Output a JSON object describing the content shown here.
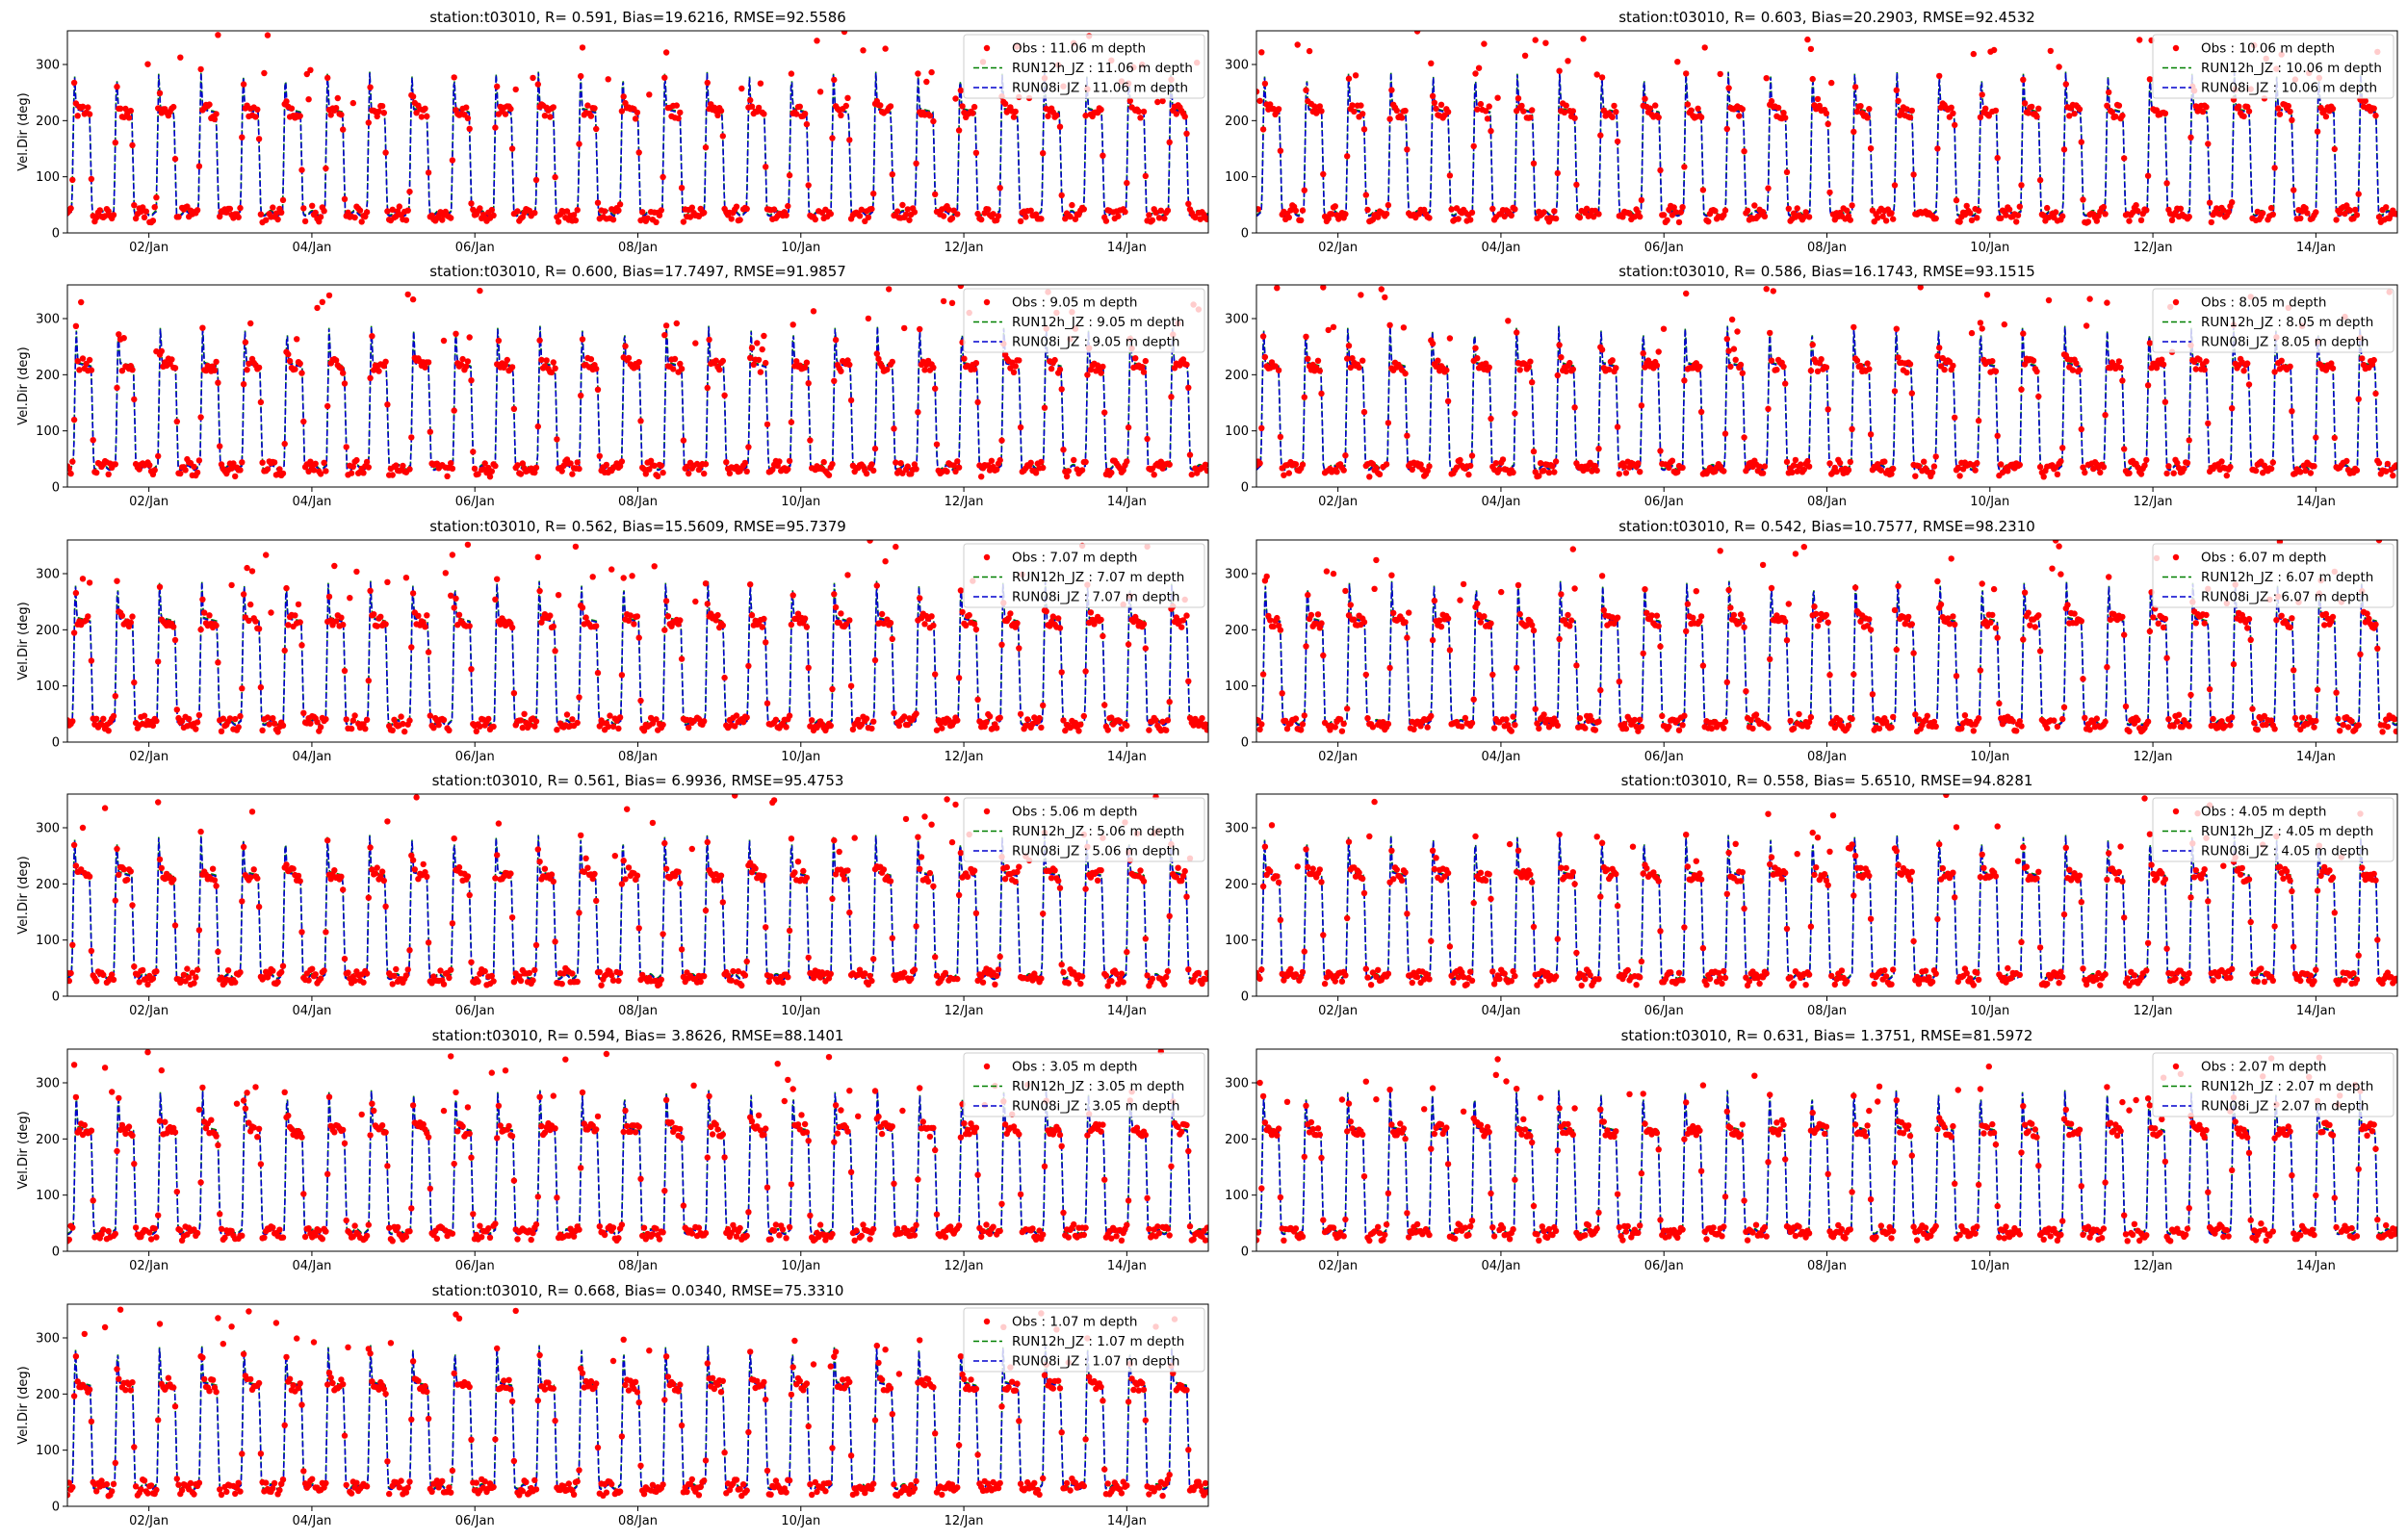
{
  "figure": {
    "background": "#ffffff",
    "colors": {
      "obs": "#ff0000",
      "run12h": "#008000",
      "run08i": "#0000cd"
    }
  },
  "chart_data": [
    {
      "type": "line",
      "title": "station:t03010, R= 0.591, Bias=19.6216, RMSE=92.5586",
      "ylabel": "Vel.Dir (deg)",
      "xlabel": "",
      "xticks": [
        "02/Jan",
        "04/Jan",
        "06/Jan",
        "08/Jan",
        "10/Jan",
        "12/Jan",
        "14/Jan"
      ],
      "yticks": [
        0,
        100,
        200,
        300
      ],
      "ylim": [
        0,
        360
      ],
      "xlim_days": [
        1.0,
        15.0
      ],
      "legend": "top-right",
      "depth": "11.06",
      "series": [
        {
          "name": "Obs : 11.06 m depth",
          "style": "dots"
        },
        {
          "name": "RUN12h_JZ : 11.06 m depth",
          "style": "dashed"
        },
        {
          "name": "RUN08i_JZ : 11.06 m depth",
          "style": "dashed"
        }
      ]
    },
    {
      "type": "line",
      "title": "station:t03010, R= 0.603, Bias=20.2903, RMSE=92.4532",
      "ylabel": "",
      "xlabel": "",
      "xticks": [
        "02/Jan",
        "04/Jan",
        "06/Jan",
        "08/Jan",
        "10/Jan",
        "12/Jan",
        "14/Jan"
      ],
      "yticks": [
        0,
        100,
        200,
        300
      ],
      "ylim": [
        0,
        360
      ],
      "xlim_days": [
        1.0,
        15.0
      ],
      "legend": "top-right",
      "depth": "10.06",
      "series": [
        {
          "name": "Obs : 10.06 m depth",
          "style": "dots"
        },
        {
          "name": "RUN12h_JZ : 10.06 m depth",
          "style": "dashed"
        },
        {
          "name": "RUN08i_JZ : 10.06 m depth",
          "style": "dashed"
        }
      ]
    },
    {
      "type": "line",
      "title": "station:t03010, R= 0.600, Bias=17.7497, RMSE=91.9857",
      "ylabel": "Vel.Dir (deg)",
      "xlabel": "",
      "xticks": [
        "02/Jan",
        "04/Jan",
        "06/Jan",
        "08/Jan",
        "10/Jan",
        "12/Jan",
        "14/Jan"
      ],
      "yticks": [
        0,
        100,
        200,
        300
      ],
      "ylim": [
        0,
        360
      ],
      "xlim_days": [
        1.0,
        15.0
      ],
      "legend": "top-right",
      "depth": "9.05",
      "series": [
        {
          "name": "Obs : 9.05 m depth",
          "style": "dots"
        },
        {
          "name": "RUN12h_JZ : 9.05 m depth",
          "style": "dashed"
        },
        {
          "name": "RUN08i_JZ : 9.05 m depth",
          "style": "dashed"
        }
      ]
    },
    {
      "type": "line",
      "title": "station:t03010, R= 0.586, Bias=16.1743, RMSE=93.1515",
      "ylabel": "",
      "xlabel": "",
      "xticks": [
        "02/Jan",
        "04/Jan",
        "06/Jan",
        "08/Jan",
        "10/Jan",
        "12/Jan",
        "14/Jan"
      ],
      "yticks": [
        0,
        100,
        200,
        300
      ],
      "ylim": [
        0,
        360
      ],
      "xlim_days": [
        1.0,
        15.0
      ],
      "legend": "top-right",
      "depth": "8.05",
      "series": [
        {
          "name": "Obs : 8.05 m depth",
          "style": "dots"
        },
        {
          "name": "RUN12h_JZ : 8.05 m depth",
          "style": "dashed"
        },
        {
          "name": "RUN08i_JZ : 8.05 m depth",
          "style": "dashed"
        }
      ]
    },
    {
      "type": "line",
      "title": "station:t03010, R= 0.562, Bias=15.5609, RMSE=95.7379",
      "ylabel": "Vel.Dir (deg)",
      "xlabel": "",
      "xticks": [
        "02/Jan",
        "04/Jan",
        "06/Jan",
        "08/Jan",
        "10/Jan",
        "12/Jan",
        "14/Jan"
      ],
      "yticks": [
        0,
        100,
        200,
        300
      ],
      "ylim": [
        0,
        360
      ],
      "xlim_days": [
        1.0,
        15.0
      ],
      "legend": "top-right",
      "depth": "7.07",
      "series": [
        {
          "name": "Obs : 7.07 m depth",
          "style": "dots"
        },
        {
          "name": "RUN12h_JZ : 7.07 m depth",
          "style": "dashed"
        },
        {
          "name": "RUN08i_JZ : 7.07 m depth",
          "style": "dashed"
        }
      ]
    },
    {
      "type": "line",
      "title": "station:t03010, R= 0.542, Bias=10.7577, RMSE=98.2310",
      "ylabel": "",
      "xlabel": "",
      "xticks": [
        "02/Jan",
        "04/Jan",
        "06/Jan",
        "08/Jan",
        "10/Jan",
        "12/Jan",
        "14/Jan"
      ],
      "yticks": [
        0,
        100,
        200,
        300
      ],
      "ylim": [
        0,
        360
      ],
      "xlim_days": [
        1.0,
        15.0
      ],
      "legend": "top-right",
      "depth": "6.07",
      "series": [
        {
          "name": "Obs : 6.07 m depth",
          "style": "dots"
        },
        {
          "name": "RUN12h_JZ : 6.07 m depth",
          "style": "dashed"
        },
        {
          "name": "RUN08i_JZ : 6.07 m depth",
          "style": "dashed"
        }
      ]
    },
    {
      "type": "line",
      "title": "station:t03010, R= 0.561, Bias= 6.9936, RMSE=95.4753",
      "ylabel": "Vel.Dir (deg)",
      "xlabel": "",
      "xticks": [
        "02/Jan",
        "04/Jan",
        "06/Jan",
        "08/Jan",
        "10/Jan",
        "12/Jan",
        "14/Jan"
      ],
      "yticks": [
        0,
        100,
        200,
        300
      ],
      "ylim": [
        0,
        360
      ],
      "xlim_days": [
        1.0,
        15.0
      ],
      "legend": "top-right",
      "depth": "5.06",
      "series": [
        {
          "name": "Obs : 5.06 m depth",
          "style": "dots"
        },
        {
          "name": "RUN12h_JZ : 5.06 m depth",
          "style": "dashed"
        },
        {
          "name": "RUN08i_JZ : 5.06 m depth",
          "style": "dashed"
        }
      ]
    },
    {
      "type": "line",
      "title": "station:t03010, R= 0.558, Bias= 5.6510, RMSE=94.8281",
      "ylabel": "",
      "xlabel": "",
      "xticks": [
        "02/Jan",
        "04/Jan",
        "06/Jan",
        "08/Jan",
        "10/Jan",
        "12/Jan",
        "14/Jan"
      ],
      "yticks": [
        0,
        100,
        200,
        300
      ],
      "ylim": [
        0,
        360
      ],
      "xlim_days": [
        1.0,
        15.0
      ],
      "legend": "top-right",
      "depth": "4.05",
      "series": [
        {
          "name": "Obs : 4.05 m depth",
          "style": "dots"
        },
        {
          "name": "RUN12h_JZ : 4.05 m depth",
          "style": "dashed"
        },
        {
          "name": "RUN08i_JZ : 4.05 m depth",
          "style": "dashed"
        }
      ]
    },
    {
      "type": "line",
      "title": "station:t03010, R= 0.594, Bias= 3.8626, RMSE=88.1401",
      "ylabel": "Vel.Dir (deg)",
      "xlabel": "",
      "xticks": [
        "02/Jan",
        "04/Jan",
        "06/Jan",
        "08/Jan",
        "10/Jan",
        "12/Jan",
        "14/Jan"
      ],
      "yticks": [
        0,
        100,
        200,
        300
      ],
      "ylim": [
        0,
        360
      ],
      "xlim_days": [
        1.0,
        15.0
      ],
      "legend": "top-right",
      "depth": "3.05",
      "series": [
        {
          "name": "Obs : 3.05 m depth",
          "style": "dots"
        },
        {
          "name": "RUN12h_JZ : 3.05 m depth",
          "style": "dashed"
        },
        {
          "name": "RUN08i_JZ : 3.05 m depth",
          "style": "dashed"
        }
      ]
    },
    {
      "type": "line",
      "title": "station:t03010, R= 0.631, Bias= 1.3751, RMSE=81.5972",
      "ylabel": "",
      "xlabel": "",
      "xticks": [
        "02/Jan",
        "04/Jan",
        "06/Jan",
        "08/Jan",
        "10/Jan",
        "12/Jan",
        "14/Jan"
      ],
      "yticks": [
        0,
        100,
        200,
        300
      ],
      "ylim": [
        0,
        360
      ],
      "xlim_days": [
        1.0,
        15.0
      ],
      "legend": "top-right",
      "depth": "2.07",
      "series": [
        {
          "name": "Obs : 2.07 m depth",
          "style": "dots"
        },
        {
          "name": "RUN12h_JZ : 2.07 m depth",
          "style": "dashed"
        },
        {
          "name": "RUN08i_JZ : 2.07 m depth",
          "style": "dashed"
        }
      ]
    },
    {
      "type": "line",
      "title": "station:t03010, R= 0.668, Bias= 0.0340, RMSE=75.3310",
      "ylabel": "Vel.Dir (deg)",
      "xlabel": "",
      "xticks": [
        "02/Jan",
        "04/Jan",
        "06/Jan",
        "08/Jan",
        "10/Jan",
        "12/Jan",
        "14/Jan"
      ],
      "yticks": [
        0,
        100,
        200,
        300
      ],
      "ylim": [
        0,
        360
      ],
      "xlim_days": [
        1.0,
        15.0
      ],
      "legend": "top-right",
      "depth": "1.07",
      "series": [
        {
          "name": "Obs : 1.07 m depth",
          "style": "dots"
        },
        {
          "name": "RUN12h_JZ : 1.07 m depth",
          "style": "dashed"
        },
        {
          "name": "RUN08i_JZ : 1.07 m depth",
          "style": "dashed"
        }
      ]
    }
  ]
}
